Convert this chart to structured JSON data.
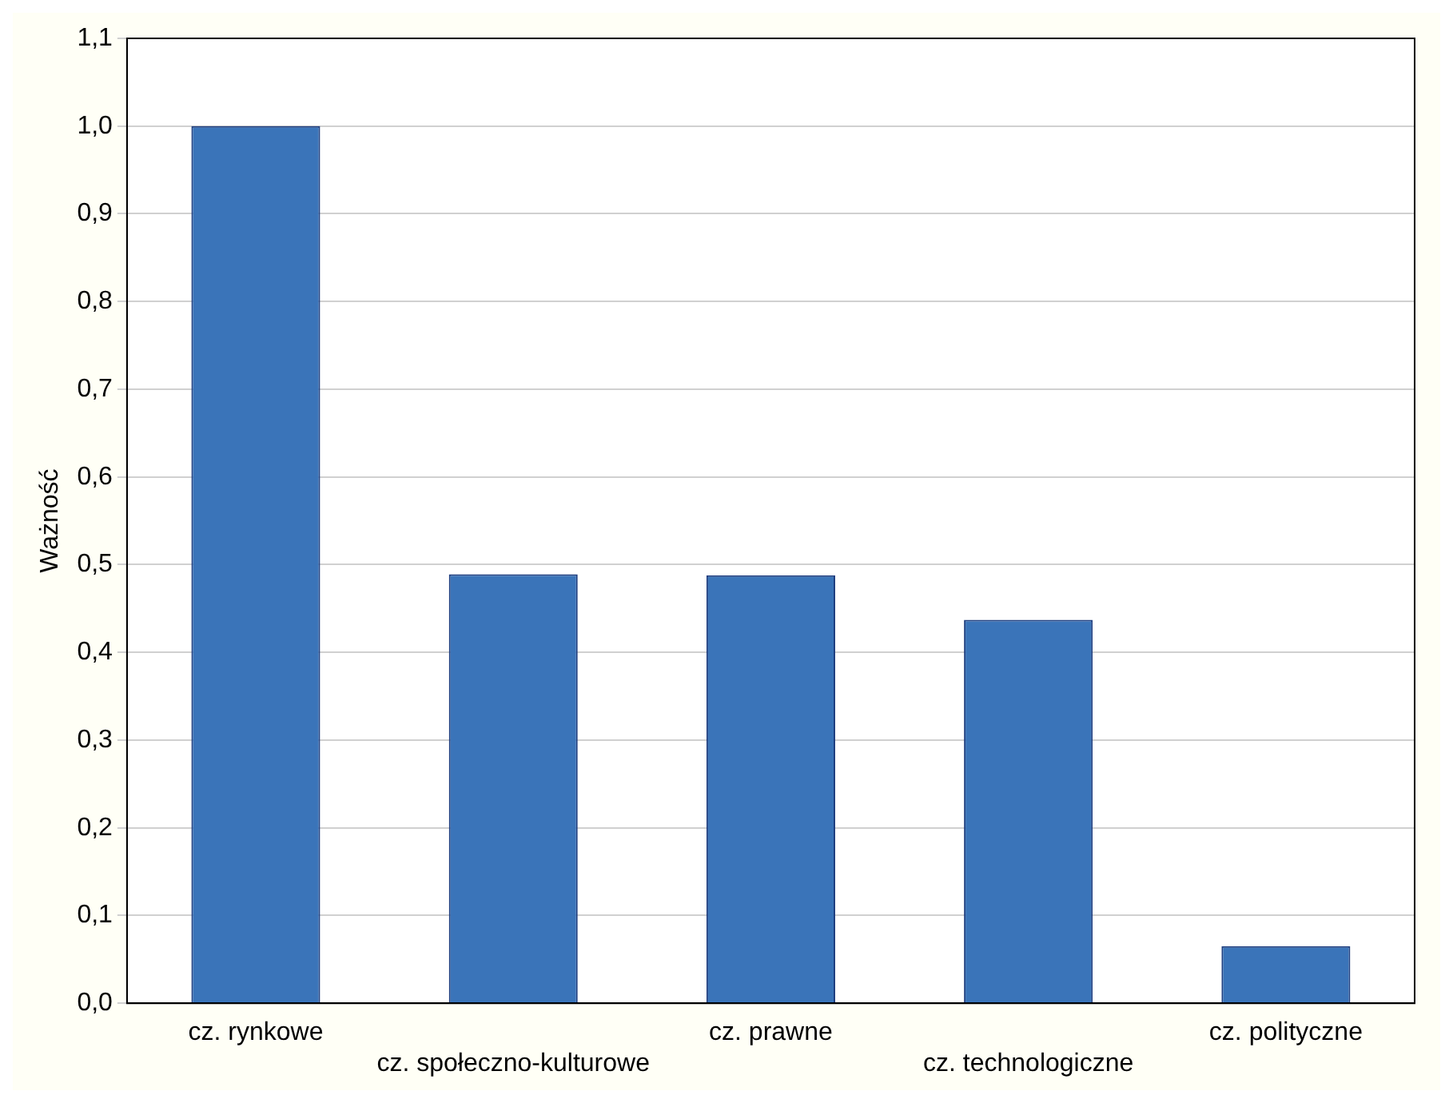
{
  "chart_data": {
    "type": "bar",
    "ylabel": "Ważność",
    "categories": [
      "cz. rynkowe",
      "cz. społeczno-kulturowe",
      "cz. prawne",
      "cz. technologiczne",
      "cz. polityczne"
    ],
    "values": [
      1.0,
      0.489,
      0.488,
      0.437,
      0.065
    ],
    "color": "#3a74b9",
    "ylim": [
      0,
      1.1
    ],
    "yticks": [
      {
        "value": 0,
        "label": "0,0"
      },
      {
        "value": 0.1,
        "label": "0,1"
      },
      {
        "value": 0.2,
        "label": "0,2"
      },
      {
        "value": 0.3,
        "label": "0,3"
      },
      {
        "value": 0.4,
        "label": "0,4"
      },
      {
        "value": 0.5,
        "label": "0,5"
      },
      {
        "value": 0.6,
        "label": "0,6"
      },
      {
        "value": 0.7,
        "label": "0,7"
      },
      {
        "value": 0.8,
        "label": "0,8"
      },
      {
        "value": 0.9,
        "label": "0,9"
      },
      {
        "value": 1,
        "label": "1,0"
      },
      {
        "value": 1.1,
        "label": "1,1"
      }
    ],
    "grid": "y",
    "legend": false
  }
}
